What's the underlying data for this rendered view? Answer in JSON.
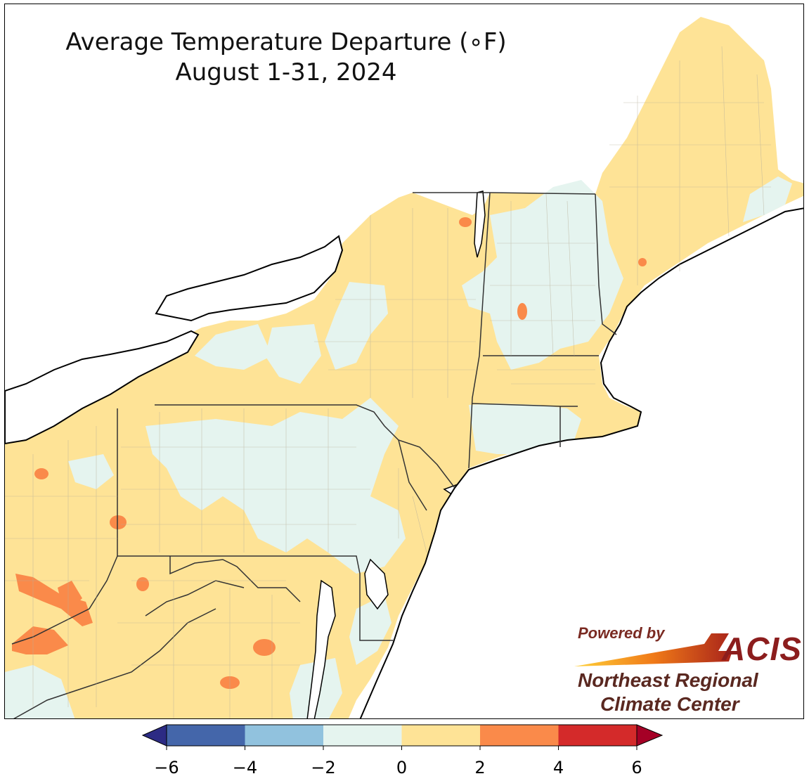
{
  "title": {
    "line1": "Average Temperature Departure (∘F)",
    "line2": "August 1-31, 2024"
  },
  "legend": {
    "ticks": [
      "−6",
      "−4",
      "−2",
      "0",
      "2",
      "4",
      "6"
    ],
    "bins": [
      {
        "min": -6,
        "max": -4,
        "color": "#4466aa"
      },
      {
        "min": -4,
        "max": -2,
        "color": "#91c2de"
      },
      {
        "min": -2,
        "max": 0,
        "color": "#e5f4ef"
      },
      {
        "min": 0,
        "max": 2,
        "color": "#fee396"
      },
      {
        "min": 2,
        "max": 4,
        "color": "#fa8a4a"
      },
      {
        "min": 4,
        "max": 6,
        "color": "#d42a2a"
      }
    ],
    "under_color": "#2c2b84",
    "over_color": "#a50026",
    "extend": "both"
  },
  "map": {
    "region": "Northeast United States",
    "land_base_color": "#fee396",
    "water_color": "#ffffff",
    "cool_color": "#e5f4ef",
    "warm_color": "#fa8a4a"
  },
  "logo": {
    "powered_by": "Powered by",
    "brand": "ACIS",
    "org_line1": "Northeast Regional",
    "org_line2": "Climate Center"
  }
}
